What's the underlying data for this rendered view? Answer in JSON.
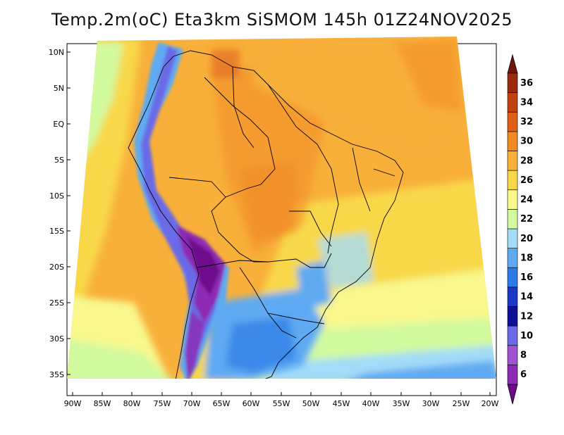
{
  "title": "Temp.2m(oC) Eta3km SiSMOM 145h 01Z24NOV2025",
  "variable": "2 m air temperature",
  "unit": "oC",
  "model": "Eta3km SiSMOM",
  "forecast_hour": "145h",
  "valid_time": "01Z24NOV2025",
  "latitude_labels": [
    "10N",
    "5N",
    "EQ",
    "5S",
    "10S",
    "15S",
    "20S",
    "25S",
    "30S",
    "35S"
  ],
  "longitude_labels": [
    "90W",
    "85W",
    "80W",
    "75W",
    "70W",
    "65W",
    "60W",
    "55W",
    "50W",
    "45W",
    "40W",
    "35W",
    "30W",
    "25W",
    "20W"
  ],
  "colorbar": {
    "labels": [
      "6",
      "8",
      "10",
      "12",
      "14",
      "16",
      "18",
      "20",
      "22",
      "24",
      "26",
      "28",
      "30",
      "32",
      "34",
      "36"
    ],
    "colors": [
      "#6e0a8c",
      "#8c2cb4",
      "#a052d2",
      "#6a6ae6",
      "#0f0f96",
      "#1a38c8",
      "#2c7ae6",
      "#5eaaf2",
      "#a2dcf8",
      "#d2fa9e",
      "#f8f88c",
      "#f8d848",
      "#f8b03a",
      "#f08a24",
      "#e0601a",
      "#c0420e",
      "#9c2a0c",
      "#6e1808"
    ]
  }
}
